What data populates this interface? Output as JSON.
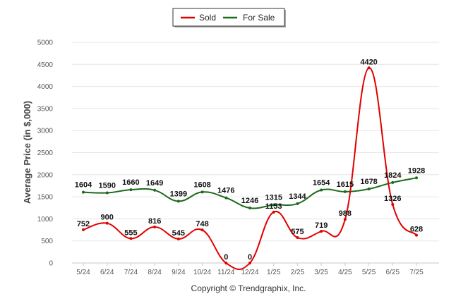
{
  "chart_data": {
    "type": "line",
    "categories": [
      "5/24",
      "6/24",
      "7/24",
      "8/24",
      "9/24",
      "10/24",
      "11/24",
      "12/24",
      "1/25",
      "2/25",
      "3/25",
      "4/25",
      "5/25",
      "6/25",
      "7/25"
    ],
    "series": [
      {
        "name": "Sold",
        "color": "#e00000",
        "values": [
          752,
          900,
          555,
          816,
          545,
          748,
          0,
          0,
          1153,
          575,
          719,
          988,
          4420,
          1326,
          628
        ]
      },
      {
        "name": "For Sale",
        "color": "#1a6b1a",
        "values": [
          1604,
          1590,
          1660,
          1649,
          1399,
          1608,
          1476,
          1246,
          1315,
          1344,
          1654,
          1615,
          1678,
          1824,
          1928
        ]
      }
    ],
    "ylabel": "Average Price (in $,000)",
    "ylim": [
      0,
      5000
    ],
    "yticks": [
      0,
      500,
      1000,
      1500,
      2000,
      2500,
      3000,
      3500,
      4000,
      4500,
      5000
    ],
    "grid": true,
    "legend": "top-center"
  },
  "caption": "Copyright © Trendgraphix, Inc."
}
